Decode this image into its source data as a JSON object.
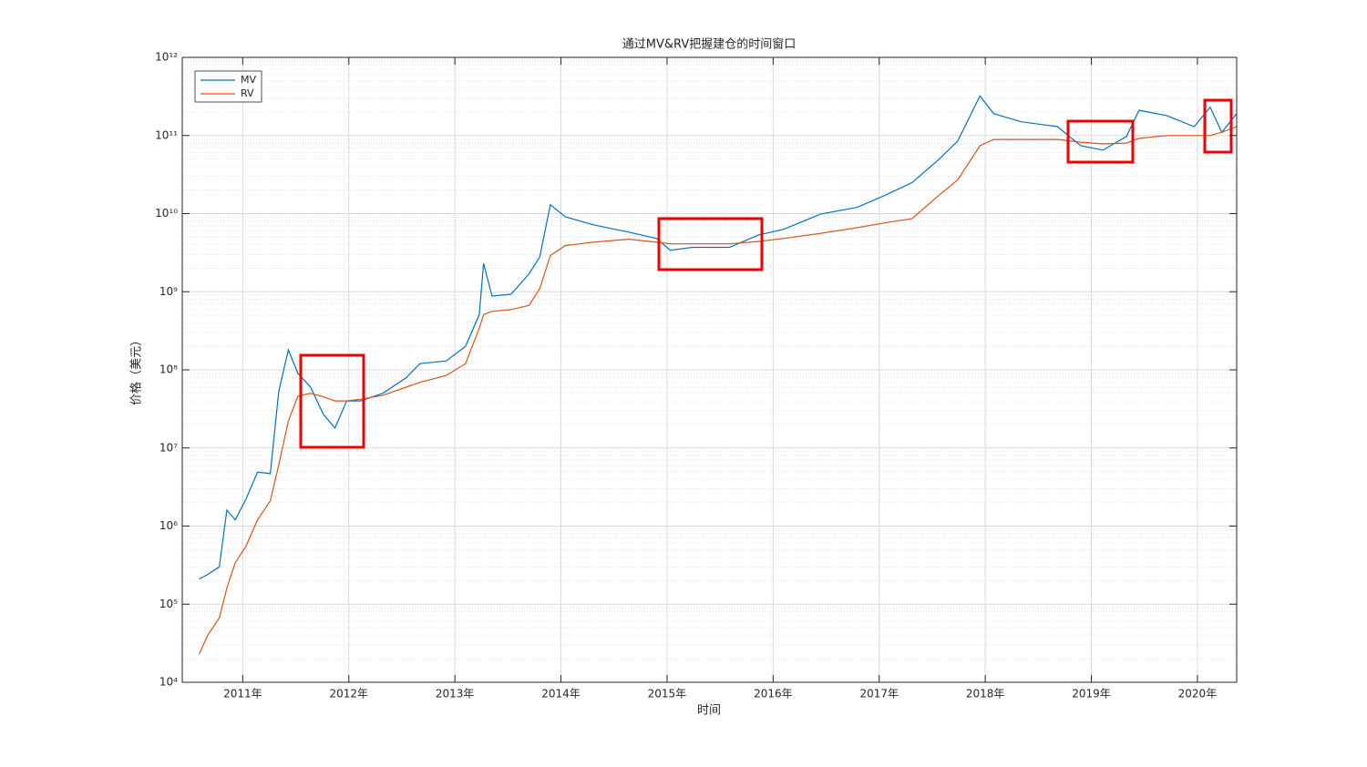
{
  "chart_data": {
    "type": "line",
    "title": "通过MV&RV把握建仓的时间窗口",
    "x_label": "时间",
    "y_label": "价格（美元）",
    "x": [
      2010.59,
      2010.67,
      2010.78,
      2010.85,
      2010.93,
      2011.03,
      2011.14,
      2011.26,
      2011.34,
      2011.43,
      2011.52,
      2011.64,
      2011.76,
      2011.87,
      2011.98,
      2012.11,
      2012.32,
      2012.54,
      2012.67,
      2012.92,
      2013.1,
      2013.23,
      2013.27,
      2013.35,
      2013.53,
      2013.7,
      2013.8,
      2013.9,
      2014.04,
      2014.3,
      2014.64,
      2014.9,
      2015.03,
      2015.24,
      2015.59,
      2015.86,
      2016.1,
      2016.45,
      2016.79,
      2017.05,
      2017.31,
      2017.56,
      2017.74,
      2017.95,
      2018.08,
      2018.34,
      2018.68,
      2018.9,
      2019.11,
      2019.33,
      2019.45,
      2019.71,
      2019.97,
      2020.12,
      2020.23,
      2020.37
    ],
    "series": [
      {
        "name": "MV",
        "color": "#0072bd",
        "values": [
          210000.0,
          240000.0,
          300000.0,
          1600000.0,
          1200000.0,
          2200000.0,
          4900000.0,
          4700000.0,
          53000000.0,
          180000000.0,
          90000000.0,
          60000000.0,
          27000000.0,
          18000000.0,
          40000000.0,
          40000000.0,
          50000000.0,
          79000000.0,
          120000000.0,
          130000000.0,
          200000000.0,
          510000000.0,
          2300000000.0,
          880000000.0,
          930000000.0,
          1700000000.0,
          2800000000.0,
          13000000000.0,
          9100000000.0,
          7200000000.0,
          5800000000.0,
          4800000000.0,
          3400000000.0,
          3700000000.0,
          3700000000.0,
          5300000000.0,
          6300000000.0,
          9900000000.0,
          12000000000.0,
          17000000000.0,
          25000000000.0,
          49000000000.0,
          85000000000.0,
          320000000000.0,
          190000000000.0,
          150000000000.0,
          130000000000.0,
          74000000000.0,
          65000000000.0,
          97000000000.0,
          210000000000.0,
          180000000000.0,
          130000000000.0,
          230000000000.0,
          110000000000.0,
          190000000000.0
        ]
      },
      {
        "name": "RV",
        "color": "#d95319",
        "values": [
          23000.0,
          40000.0,
          67000.0,
          160000.0,
          340000.0,
          550000.0,
          1200000.0,
          2100000.0,
          6100000.0,
          22000000.0,
          46000000.0,
          50000000.0,
          45000000.0,
          40000000.0,
          40000000.0,
          42000000.0,
          47000000.0,
          60000000.0,
          69000000.0,
          85000000.0,
          120000000.0,
          340000000.0,
          510000000.0,
          560000000.0,
          590000000.0,
          670000000.0,
          1100000000.0,
          2900000000.0,
          3900000000.0,
          4300000000.0,
          4700000000.0,
          4300000000.0,
          4100000000.0,
          4100000000.0,
          4100000000.0,
          4400000000.0,
          4800000000.0,
          5600000000.0,
          6600000000.0,
          7600000000.0,
          8600000000.0,
          17000000000.0,
          27000000000.0,
          74000000000.0,
          89000000000.0,
          89000000000.0,
          89000000000.0,
          82000000000.0,
          78000000000.0,
          80000000000.0,
          92000000000.0,
          100000000000.0,
          100000000000.0,
          100000000000.0,
          110000000000.0,
          130000000000.0
        ]
      }
    ],
    "xlim": [
      2010.43,
      2020.37
    ],
    "xticks": [
      {
        "value": 2011,
        "label": "2011年"
      },
      {
        "value": 2012,
        "label": "2012年"
      },
      {
        "value": 2013,
        "label": "2013年"
      },
      {
        "value": 2014,
        "label": "2014年"
      },
      {
        "value": 2015,
        "label": "2015年"
      },
      {
        "value": 2016,
        "label": "2016年"
      },
      {
        "value": 2017,
        "label": "2017年"
      },
      {
        "value": 2018,
        "label": "2018年"
      },
      {
        "value": 2019,
        "label": "2019年"
      },
      {
        "value": 2020,
        "label": "2020年"
      }
    ],
    "ylim": [
      10000,
      1000000000000
    ],
    "yticks": [
      {
        "value": 10000,
        "label": "10⁴"
      },
      {
        "value": 100000,
        "label": "10⁵"
      },
      {
        "value": 1000000,
        "label": "10⁶"
      },
      {
        "value": 10000000,
        "label": "10⁷"
      },
      {
        "value": 100000000,
        "label": "10⁸"
      },
      {
        "value": 1000000000,
        "label": "10⁹"
      },
      {
        "value": 10000000000,
        "label": "10¹⁰"
      },
      {
        "value": 100000000000,
        "label": "10¹¹"
      },
      {
        "value": 1000000000000,
        "label": "10¹²"
      }
    ],
    "y_scale": "log",
    "grid": true,
    "minor_grid": true,
    "legend": "upper left"
  }
}
